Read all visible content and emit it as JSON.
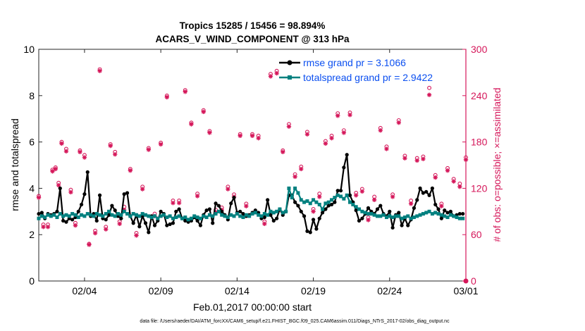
{
  "chart_data": {
    "type": "line",
    "title_line1": "Tropics 15285 / 15456 = 98.894%",
    "title_line2": "ACARS_V_WIND_COMPONENT @ 313 hPa",
    "ylabel_left": "rmse and totalspread",
    "ylabel_right": "# of obs: o=possible; ×=assimilated",
    "xlabel": "Feb.01,2017 00:00:00 start",
    "footer": "data file: /Users/raeder/DAI/ATM_forcXX/CAM6_setup/f.e21.FHIST_BGC.f09_025.CAM6assim.011/Diags_NTrS_2017-02/obs_diag_output.nc",
    "xlim": [
      1,
      29
    ],
    "ylim_left": [
      0,
      10
    ],
    "ylim_right": [
      0,
      300
    ],
    "xticks": [
      4,
      9,
      14,
      19,
      24,
      29
    ],
    "xtick_labels": [
      "02/04",
      "02/09",
      "02/14",
      "02/19",
      "02/24",
      "03/01"
    ],
    "yticks_left": [
      0,
      2,
      4,
      6,
      8,
      10
    ],
    "yticks_left_labels": [
      "0",
      "2",
      "4",
      "6",
      "8",
      "10"
    ],
    "yticks_right": [
      0,
      60,
      120,
      180,
      240,
      300
    ],
    "yticks_right_labels": [
      "0",
      "60",
      "120",
      "180",
      "240",
      "300"
    ],
    "colors": {
      "rmse": "#000000",
      "spread": "#00807f",
      "obs": "#d5175a",
      "legend_text": "#0b4ff0",
      "right_axis": "#d5175a"
    },
    "legend": [
      {
        "name": "rmse",
        "label": "rmse grand pr = 3.1066"
      },
      {
        "name": "spread",
        "label": "totalspread grand pr = 2.9422"
      }
    ],
    "series": [
      {
        "name": "rmse",
        "x": [
          1.0,
          1.2,
          1.4,
          1.6,
          1.8,
          2.0,
          2.2,
          2.4,
          2.6,
          2.8,
          3.0,
          3.2,
          3.4,
          3.6,
          3.8,
          4.0,
          4.2,
          4.4,
          4.6,
          4.8,
          5.0,
          5.2,
          5.4,
          5.6,
          5.8,
          6.0,
          6.2,
          6.4,
          6.6,
          6.8,
          7.0,
          7.2,
          7.4,
          7.6,
          7.8,
          8.0,
          8.2,
          8.4,
          8.6,
          8.8,
          9.0,
          9.2,
          9.4,
          9.6,
          9.8,
          10.0,
          10.2,
          10.4,
          10.6,
          10.8,
          11.0,
          11.2,
          11.4,
          11.6,
          11.8,
          12.0,
          12.2,
          12.4,
          12.6,
          12.8,
          13.0,
          13.2,
          13.4,
          13.6,
          13.8,
          14.0,
          14.2,
          14.4,
          14.6,
          14.8,
          15.0,
          15.2,
          15.4,
          15.6,
          15.8,
          16.0,
          16.2,
          16.4,
          16.6,
          16.8,
          17.0,
          17.2,
          17.4,
          17.6,
          17.8,
          18.0,
          18.2,
          18.4,
          18.6,
          18.8,
          19.0,
          19.2,
          19.4,
          19.6,
          19.8,
          20.0,
          20.2,
          20.4,
          20.6,
          20.8,
          21.0,
          21.2,
          21.4,
          21.6,
          21.8,
          22.0,
          22.2,
          22.4,
          22.6,
          22.8,
          23.0,
          23.2,
          23.4,
          23.6,
          23.8,
          24.0,
          24.2,
          24.4,
          24.6,
          24.8,
          25.0,
          25.2,
          25.4,
          25.6,
          25.8,
          26.0,
          26.2,
          26.4,
          26.6,
          26.8,
          27.0,
          27.2,
          27.4,
          27.6,
          27.8,
          28.0,
          28.2,
          28.4,
          28.6,
          28.8
        ],
        "values": [
          2.9,
          2.95,
          2.7,
          2.9,
          2.85,
          2.9,
          3.0,
          4.0,
          2.6,
          2.55,
          2.7,
          2.65,
          2.75,
          3.0,
          3.3,
          3.75,
          4.7,
          2.8,
          2.9,
          2.6,
          3.7,
          2.7,
          2.65,
          2.85,
          3.25,
          3.05,
          2.8,
          2.7,
          3.75,
          3.8,
          2.8,
          2.5,
          2.85,
          2.35,
          2.8,
          2.5,
          2.1,
          2.8,
          2.4,
          2.6,
          3.0,
          2.9,
          2.4,
          2.45,
          2.5,
          3.0,
          3.1,
          2.7,
          2.6,
          2.55,
          2.6,
          2.75,
          2.6,
          2.4,
          2.85,
          3.05,
          3.1,
          2.5,
          3.35,
          3.25,
          3.0,
          2.85,
          2.65,
          3.35,
          3.6,
          2.95,
          3.0,
          2.9,
          2.8,
          2.85,
          2.95,
          3.05,
          2.95,
          2.7,
          2.75,
          3.5,
          2.85,
          2.6,
          2.7,
          3.1,
          2.85,
          3.0,
          3.7,
          3.7,
          3.4,
          3.25,
          3.0,
          2.8,
          2.15,
          2.1,
          2.65,
          2.25,
          2.7,
          2.95,
          3.1,
          3.25,
          3.3,
          3.4,
          3.9,
          3.9,
          4.9,
          5.45,
          3.7,
          3.4,
          3.05,
          2.6,
          2.7,
          2.9,
          3.15,
          3.0,
          2.9,
          3.1,
          3.25,
          2.9,
          2.8,
          3.0,
          2.3,
          2.85,
          2.95,
          2.4,
          2.7,
          2.4,
          2.65,
          3.15,
          3.5,
          4.0,
          3.8,
          3.85,
          3.7,
          4.0,
          3.3,
          3.1,
          2.7,
          3.05,
          2.95,
          3.0,
          2.8,
          2.85,
          2.9,
          2.9
        ]
      },
      {
        "name": "totalspread",
        "x": [
          1.0,
          1.2,
          1.4,
          1.6,
          1.8,
          2.0,
          2.2,
          2.4,
          2.6,
          2.8,
          3.0,
          3.2,
          3.4,
          3.6,
          3.8,
          4.0,
          4.2,
          4.4,
          4.6,
          4.8,
          5.0,
          5.2,
          5.4,
          5.6,
          5.8,
          6.0,
          6.2,
          6.4,
          6.6,
          6.8,
          7.0,
          7.2,
          7.4,
          7.6,
          7.8,
          8.0,
          8.2,
          8.4,
          8.6,
          8.8,
          9.0,
          9.2,
          9.4,
          9.6,
          9.8,
          10.0,
          10.2,
          10.4,
          10.6,
          10.8,
          11.0,
          11.2,
          11.4,
          11.6,
          11.8,
          12.0,
          12.2,
          12.4,
          12.6,
          12.8,
          13.0,
          13.2,
          13.4,
          13.6,
          13.8,
          14.0,
          14.2,
          14.4,
          14.6,
          14.8,
          15.0,
          15.2,
          15.4,
          15.6,
          15.8,
          16.0,
          16.2,
          16.4,
          16.6,
          16.8,
          17.0,
          17.2,
          17.4,
          17.6,
          17.8,
          18.0,
          18.2,
          18.4,
          18.6,
          18.8,
          19.0,
          19.2,
          19.4,
          19.6,
          19.8,
          20.0,
          20.2,
          20.4,
          20.6,
          20.8,
          21.0,
          21.2,
          21.4,
          21.6,
          21.8,
          22.0,
          22.2,
          22.4,
          22.6,
          22.8,
          23.0,
          23.2,
          23.4,
          23.6,
          23.8,
          24.0,
          24.2,
          24.4,
          24.6,
          24.8,
          25.0,
          25.2,
          25.4,
          25.6,
          25.8,
          26.0,
          26.2,
          26.4,
          26.6,
          26.8,
          27.0,
          27.2,
          27.4,
          27.6,
          27.8,
          28.0,
          28.2,
          28.4,
          28.6,
          28.8
        ],
        "values": [
          2.7,
          2.8,
          2.75,
          2.85,
          2.8,
          2.85,
          2.75,
          2.9,
          2.8,
          2.85,
          2.8,
          2.9,
          2.85,
          2.75,
          2.85,
          2.8,
          2.9,
          2.85,
          2.8,
          2.9,
          2.85,
          2.8,
          2.9,
          3.0,
          2.85,
          2.8,
          2.9,
          2.85,
          3.0,
          2.9,
          2.8,
          2.9,
          2.85,
          2.8,
          2.9,
          2.85,
          2.8,
          2.75,
          2.8,
          2.7,
          2.8,
          2.85,
          2.75,
          2.8,
          2.7,
          2.75,
          2.8,
          2.7,
          2.75,
          2.65,
          2.7,
          2.8,
          2.75,
          2.7,
          2.8,
          2.75,
          2.85,
          2.8,
          2.9,
          3.0,
          2.85,
          2.8,
          2.75,
          2.85,
          2.8,
          2.9,
          2.8,
          2.75,
          2.85,
          2.8,
          2.9,
          2.95,
          2.85,
          2.8,
          2.9,
          2.85,
          3.0,
          2.95,
          3.0,
          3.1,
          2.95,
          3.0,
          4.0,
          3.6,
          4.0,
          3.8,
          3.5,
          3.4,
          3.45,
          3.35,
          3.5,
          3.4,
          3.3,
          3.1,
          3.35,
          3.4,
          3.5,
          3.6,
          3.7,
          3.65,
          3.55,
          3.7,
          3.4,
          3.3,
          3.2,
          3.1,
          3.0,
          2.95,
          2.9,
          2.9,
          2.85,
          2.8,
          2.8,
          2.85,
          2.75,
          2.8,
          2.75,
          2.8,
          2.8,
          2.7,
          2.75,
          2.8,
          2.7,
          2.75,
          2.8,
          2.85,
          2.9,
          2.95,
          3.0,
          2.9,
          2.95,
          2.9,
          2.85,
          2.8,
          2.75,
          2.85,
          2.8,
          2.75,
          2.7,
          2.7
        ]
      },
      {
        "name": "obs_possible",
        "x": [
          1.0,
          1.3,
          1.6,
          1.9,
          2.1,
          2.3,
          2.5,
          2.8,
          3.1,
          3.4,
          3.7,
          4.0,
          4.3,
          4.7,
          5.0,
          5.4,
          5.7,
          6.0,
          6.3,
          6.6,
          7.0,
          7.4,
          7.8,
          8.2,
          8.6,
          9.0,
          9.4,
          9.8,
          10.2,
          10.6,
          11.0,
          11.4,
          11.8,
          12.2,
          12.6,
          13.0,
          13.4,
          13.8,
          14.2,
          14.6,
          15.0,
          15.4,
          15.8,
          16.2,
          16.6,
          17.0,
          17.4,
          17.8,
          18.2,
          18.6,
          19.0,
          19.4,
          19.8,
          20.2,
          20.6,
          21.0,
          21.4,
          21.8,
          22.2,
          22.6,
          23.0,
          23.4,
          23.8,
          24.2,
          24.6,
          25.0,
          25.4,
          25.8,
          26.2,
          26.6,
          27.0,
          27.4,
          27.8,
          28.2,
          28.6,
          29.0
        ],
        "values": [
          110,
          73,
          73,
          144,
          147,
          127,
          180,
          171,
          118,
          75,
          169,
          163,
          48,
          65,
          274,
          70,
          177,
          167,
          77,
          96,
          145,
          62,
          122,
          172,
          87,
          179,
          240,
          104,
          104,
          247,
          205,
          113,
          221,
          194,
          92,
          95,
          122,
          112,
          190,
          100,
          190,
          188,
          77,
          268,
          272,
          169,
          203,
          138,
          148,
          193,
          93,
          113,
          181,
          188,
          217,
          195,
          218,
          114,
          119,
          82,
          109,
          198,
          174,
          112,
          208,
          162,
          104,
          159,
          161,
          250,
          137,
          100,
          146,
          132,
          126,
          160
        ]
      },
      {
        "name": "obs_assimilated",
        "x": [
          1.0,
          1.3,
          1.6,
          1.9,
          2.1,
          2.3,
          2.5,
          2.8,
          3.1,
          3.4,
          3.7,
          4.0,
          4.3,
          4.7,
          5.0,
          5.4,
          5.7,
          6.0,
          6.3,
          6.6,
          7.0,
          7.4,
          7.8,
          8.2,
          8.6,
          9.0,
          9.4,
          9.8,
          10.2,
          10.6,
          11.0,
          11.4,
          11.8,
          12.2,
          12.6,
          13.0,
          13.4,
          13.8,
          14.2,
          14.6,
          15.0,
          15.4,
          15.8,
          16.2,
          16.6,
          17.0,
          17.4,
          17.8,
          18.2,
          18.6,
          19.0,
          19.4,
          19.8,
          20.2,
          20.6,
          21.0,
          21.4,
          21.8,
          22.2,
          22.6,
          23.0,
          23.4,
          23.8,
          24.2,
          24.6,
          25.0,
          25.4,
          25.8,
          26.2,
          26.6,
          27.0,
          27.4,
          27.8,
          28.2,
          28.6,
          29.0
        ],
        "values": [
          108,
          70,
          70,
          142,
          145,
          124,
          178,
          168,
          115,
          72,
          167,
          160,
          47,
          62,
          272,
          67,
          175,
          164,
          74,
          92,
          143,
          59,
          119,
          170,
          84,
          177,
          238,
          101,
          101,
          245,
          203,
          110,
          219,
          192,
          89,
          92,
          119,
          109,
          188,
          97,
          188,
          185,
          74,
          265,
          269,
          167,
          200,
          135,
          145,
          190,
          90,
          109,
          178,
          185,
          214,
          192,
          215,
          111,
          116,
          79,
          105,
          195,
          171,
          109,
          205,
          159,
          100,
          156,
          158,
          241,
          134,
          97,
          143,
          129,
          122,
          157
        ]
      }
    ]
  }
}
